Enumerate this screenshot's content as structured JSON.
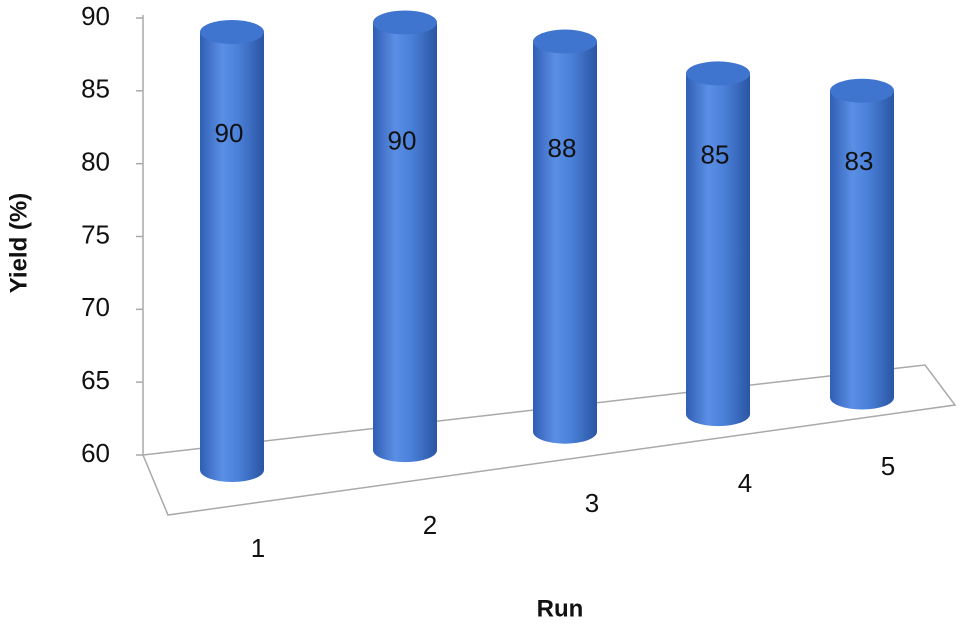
{
  "chart_data": {
    "type": "cylinder-bar",
    "x_label": "Run",
    "y_label": "Yield (%)",
    "categories": [
      "1",
      "2",
      "3",
      "4",
      "5"
    ],
    "values": [
      90,
      90,
      88,
      85,
      83
    ],
    "color": "#4a80d8",
    "ylim": [
      60,
      90
    ],
    "yticks": [
      60,
      65,
      70,
      75,
      80,
      85,
      90
    ]
  }
}
